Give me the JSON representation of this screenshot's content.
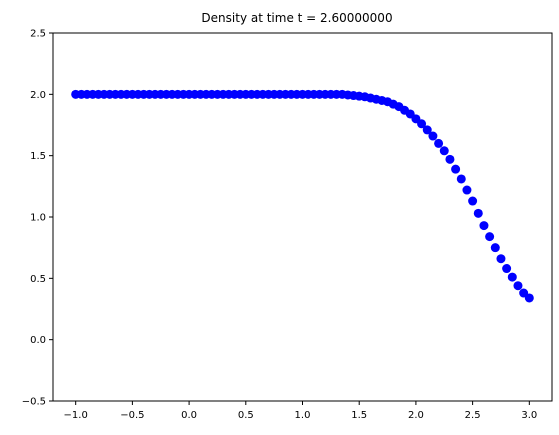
{
  "chart_data": {
    "type": "scatter",
    "title": "Density at time t =      2.60000000",
    "xlabel": "",
    "ylabel": "",
    "xlim": [
      -1.2,
      3.2
    ],
    "ylim": [
      -0.5,
      2.5
    ],
    "xticks": [
      -1.0,
      -0.5,
      0.0,
      0.5,
      1.0,
      1.5,
      2.0,
      2.5,
      3.0
    ],
    "xtick_labels": [
      "−1.0",
      "−0.5",
      "0.0",
      "0.5",
      "1.0",
      "1.5",
      "2.0",
      "2.5",
      "3.0"
    ],
    "yticks": [
      -0.5,
      0.0,
      0.5,
      1.0,
      1.5,
      2.0,
      2.5
    ],
    "ytick_labels": [
      "−0.5",
      "0.0",
      "0.5",
      "1.0",
      "1.5",
      "2.0",
      "2.5"
    ],
    "grid": false,
    "marker_color": "#0000ff",
    "series": [
      {
        "x": [
          -1.0,
          -0.95,
          -0.9,
          -0.85,
          -0.8,
          -0.75,
          -0.7,
          -0.65,
          -0.6,
          -0.55,
          -0.5,
          -0.45,
          -0.4,
          -0.35,
          -0.3,
          -0.25,
          -0.2,
          -0.15,
          -0.1,
          -0.05,
          0.0,
          0.05,
          0.1,
          0.15,
          0.2,
          0.25,
          0.3,
          0.35,
          0.4,
          0.45,
          0.5,
          0.55,
          0.6,
          0.65,
          0.7,
          0.75,
          0.8,
          0.85,
          0.9,
          0.95,
          1.0,
          1.05,
          1.1,
          1.15,
          1.2,
          1.25,
          1.3,
          1.35,
          1.4,
          1.45,
          1.5,
          1.55,
          1.6,
          1.65,
          1.7,
          1.75,
          1.8,
          1.85,
          1.9,
          1.95,
          2.0,
          2.05,
          2.1,
          2.15,
          2.2,
          2.25,
          2.3,
          2.35,
          2.4,
          2.45,
          2.5,
          2.55,
          2.6,
          2.65,
          2.7,
          2.75,
          2.8,
          2.85,
          2.9,
          2.95,
          3.0
        ],
        "y": [
          2.0,
          2.0,
          2.0,
          2.0,
          2.0,
          2.0,
          2.0,
          2.0,
          2.0,
          2.0,
          2.0,
          2.0,
          2.0,
          2.0,
          2.0,
          2.0,
          2.0,
          2.0,
          2.0,
          2.0,
          2.0,
          2.0,
          2.0,
          2.0,
          2.0,
          2.0,
          2.0,
          2.0,
          2.0,
          2.0,
          2.0,
          2.0,
          2.0,
          2.0,
          2.0,
          2.0,
          2.0,
          2.0,
          2.0,
          2.0,
          2.0,
          2.0,
          2.0,
          2.0,
          2.0,
          2.0,
          2.0,
          2.0,
          1.995,
          1.99,
          1.985,
          1.98,
          1.97,
          1.96,
          1.95,
          1.94,
          1.92,
          1.9,
          1.87,
          1.84,
          1.8,
          1.76,
          1.71,
          1.66,
          1.6,
          1.54,
          1.47,
          1.39,
          1.31,
          1.22,
          1.13,
          1.03,
          0.93,
          0.84,
          0.75,
          0.66,
          0.58,
          0.51,
          0.44,
          0.38,
          0.34
        ]
      }
    ]
  }
}
